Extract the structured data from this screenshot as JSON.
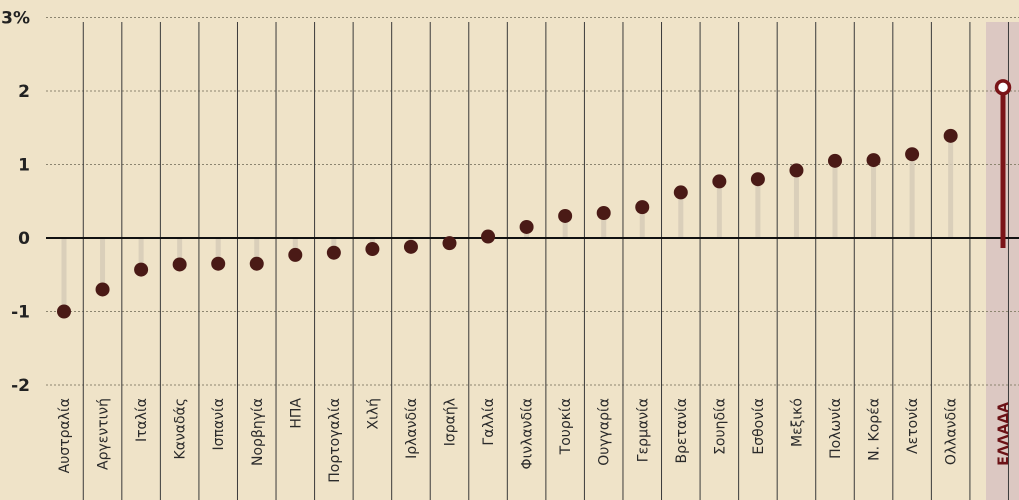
{
  "chart_data": {
    "type": "scatter",
    "ylim": [
      -2.3,
      3
    ],
    "yticks": [
      {
        "value": 3,
        "label": "3%"
      },
      {
        "value": 2,
        "label": "2"
      },
      {
        "value": 1,
        "label": "1"
      },
      {
        "value": 0,
        "label": "0"
      },
      {
        "value": -1,
        "label": "-1"
      },
      {
        "value": -2,
        "label": "-2"
      }
    ],
    "grid": true,
    "categories": [
      "Αυστραλία",
      "Αργεντινή",
      "Ιταλία",
      "Καναδάς",
      "Ισπανία",
      "Νορβηγία",
      "ΗΠΑ",
      "Πορτογαλία",
      "Χιλή",
      "Ιρλανδία",
      "Ισραήλ",
      "Γαλλία",
      "Φινλανδία",
      "Τουρκία",
      "Ουγγαρία",
      "Γερμανία",
      "Βρετανία",
      "Σουηδία",
      "Εσθονία",
      "Μεξικό",
      "Πολωνία",
      "Ν. Κορέα",
      "Λετονία",
      "Ολλανδία",
      "ΕΛΛΑΔΑ"
    ],
    "values": [
      -1.0,
      -0.7,
      -0.43,
      -0.36,
      -0.35,
      -0.35,
      -0.23,
      -0.2,
      -0.15,
      -0.12,
      -0.07,
      0.02,
      0.15,
      0.3,
      0.34,
      0.42,
      0.62,
      0.77,
      0.8,
      0.92,
      1.05,
      1.06,
      1.14,
      1.39,
      2.05
    ],
    "highlight": "ΕΛΛΑΔΑ",
    "colors": {
      "background": "#efe3c8",
      "point": "#4a1a16",
      "highlight_band": "#dcc8c2",
      "highlight": "#7a1418",
      "axis": "#111111",
      "stem": "#d6cbb7",
      "grid": "#8c8570"
    }
  }
}
